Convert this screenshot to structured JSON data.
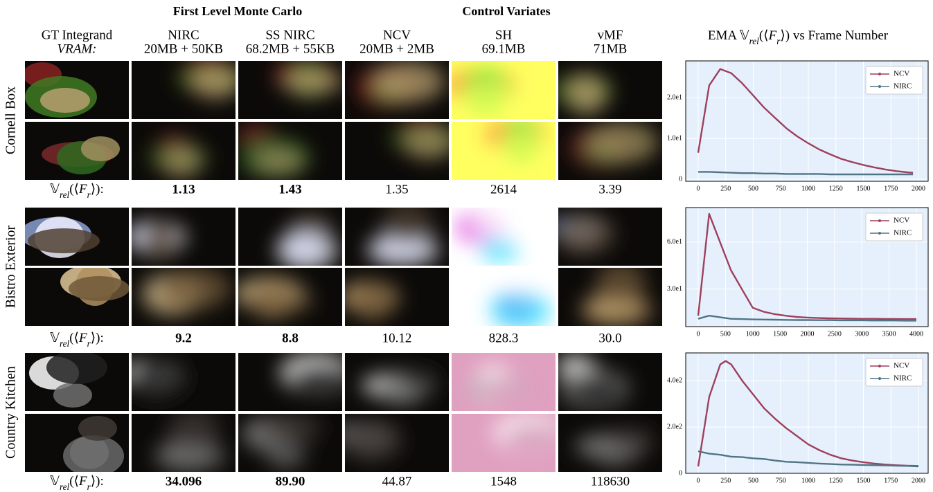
{
  "figure": {
    "group_headers": [
      "First Level Monte Carlo",
      "Control Variates"
    ],
    "columns": [
      {
        "name": "GT Integrand",
        "vram": "VRAM:"
      },
      {
        "name": "NIRC",
        "vram": "20MB + 50KB"
      },
      {
        "name": "SS NIRC",
        "vram": "68.2MB + 55KB"
      },
      {
        "name": "NCV",
        "vram": "20MB + 2MB"
      },
      {
        "name": "SH",
        "vram": "69.1MB"
      },
      {
        "name": "vMF",
        "vram": "71MB"
      }
    ],
    "metric": [
      {
        "text": "𝕍",
        "style": "normal"
      },
      {
        "text": "rel",
        "style": "sub"
      },
      {
        "text": "(⟨",
        "style": "normal"
      },
      {
        "text": "F",
        "style": "italic"
      },
      {
        "text": "r",
        "style": "sub"
      },
      {
        "text": "⟩)",
        "style": "normal"
      }
    ],
    "metric_colon": ":",
    "chart_title_prefix": "EMA",
    "chart_title_suffix": "vs Frame Number",
    "scenes": [
      {
        "name": "Cornell Box",
        "values": [
          "1.13",
          "1.43",
          "1.35",
          "2614",
          "3.39"
        ],
        "bold": [
          true,
          true,
          false,
          false,
          false
        ]
      },
      {
        "name": "Bistro Exterior",
        "values": [
          "9.2",
          "8.8",
          "10.12",
          "828.3",
          "30.0"
        ],
        "bold": [
          true,
          true,
          false,
          false,
          false
        ]
      },
      {
        "name": "Country Kitchen",
        "values": [
          "34.096",
          "89.90",
          "44.87",
          "1548",
          "118630"
        ],
        "bold": [
          true,
          true,
          false,
          false,
          false
        ]
      }
    ]
  },
  "chart_data": [
    {
      "type": "line",
      "x": [
        0,
        100,
        200,
        300,
        400,
        500,
        600,
        700,
        800,
        900,
        1000,
        1100,
        1200,
        1300,
        1400,
        1500,
        1600,
        1700,
        1800,
        1900,
        1950
      ],
      "series": [
        {
          "name": "NCV",
          "color": "#9e3f5c",
          "values": [
            6.5,
            23,
            27,
            26,
            23.5,
            20.5,
            17.5,
            15,
            12.5,
            10.5,
            8.8,
            7.3,
            6.1,
            5.0,
            4.2,
            3.5,
            2.9,
            2.4,
            2.0,
            1.7,
            1.6
          ]
        },
        {
          "name": "NIRC",
          "color": "#4f7585",
          "values": [
            1.8,
            1.8,
            1.7,
            1.6,
            1.5,
            1.5,
            1.4,
            1.4,
            1.3,
            1.3,
            1.3,
            1.3,
            1.2,
            1.2,
            1.2,
            1.2,
            1.2,
            1.2,
            1.2,
            1.2,
            1.2
          ]
        }
      ],
      "xlim": [
        -113,
        2088
      ],
      "xticks": [
        0,
        250,
        500,
        750,
        1000,
        1250,
        1500,
        1750,
        2000
      ],
      "ylim": [
        -0.5,
        29
      ],
      "yticks": [
        0,
        {
          "value": 10,
          "label": "1.0e1"
        },
        {
          "value": 20,
          "label": "2.0e1"
        }
      ],
      "grid": true,
      "legend": "upper-right"
    },
    {
      "type": "line",
      "x": [
        0,
        200,
        400,
        600,
        800,
        1000,
        1200,
        1400,
        1600,
        1800,
        2000,
        2200,
        2400,
        2600,
        2800,
        3000,
        3200,
        3400,
        3600,
        3800,
        4000
      ],
      "series": [
        {
          "name": "NCV",
          "color": "#9e3f5c",
          "values": [
            13,
            78,
            60,
            42,
            30,
            18,
            15.5,
            14,
            13,
            12.2,
            11.8,
            11.5,
            11.3,
            11.2,
            11.1,
            11,
            11,
            10.9,
            10.9,
            10.8,
            10.8
          ]
        },
        {
          "name": "NIRC",
          "color": "#4f7585",
          "values": [
            11,
            13,
            12,
            11,
            10.8,
            10.6,
            10.5,
            10.4,
            10.3,
            10.2,
            10.2,
            10.1,
            10.1,
            10,
            10,
            10,
            9.9,
            9.9,
            9.9,
            9.8,
            9.8
          ]
        }
      ],
      "xlim": [
        -229,
        4216
      ],
      "xticks": [
        0,
        500,
        1000,
        1500,
        2000,
        2500,
        3000,
        3500,
        4000
      ],
      "ylim": [
        6,
        82
      ],
      "yticks": [
        {
          "value": 30,
          "label": "3.0e1"
        },
        {
          "value": 60,
          "label": "6.0e1"
        }
      ],
      "grid": true,
      "legend": "upper-right"
    },
    {
      "type": "line",
      "x": [
        0,
        100,
        200,
        250,
        300,
        400,
        500,
        600,
        700,
        800,
        900,
        1000,
        1100,
        1200,
        1300,
        1400,
        1500,
        1600,
        1700,
        1800,
        1900,
        2000
      ],
      "series": [
        {
          "name": "NCV",
          "color": "#9e3f5c",
          "values": [
            30,
            330,
            470,
            485,
            470,
            400,
            340,
            280,
            235,
            195,
            160,
            125,
            100,
            80,
            65,
            55,
            48,
            42,
            38,
            35,
            33,
            32
          ]
        },
        {
          "name": "NIRC",
          "color": "#4f7585",
          "values": [
            95,
            85,
            80,
            76,
            72,
            70,
            65,
            62,
            55,
            50,
            48,
            45,
            42,
            40,
            38,
            37,
            36,
            35,
            34,
            33,
            32,
            30
          ]
        }
      ],
      "xlim": [
        -113,
        2088
      ],
      "xticks": [
        0,
        250,
        500,
        750,
        1000,
        1250,
        1500,
        1750,
        2000
      ],
      "ylim": [
        0,
        520
      ],
      "yticks": [
        0,
        {
          "value": 200,
          "label": "2.0e2"
        },
        {
          "value": 400,
          "label": "4.0e2"
        }
      ],
      "grid": true,
      "legend": "upper-right"
    }
  ]
}
